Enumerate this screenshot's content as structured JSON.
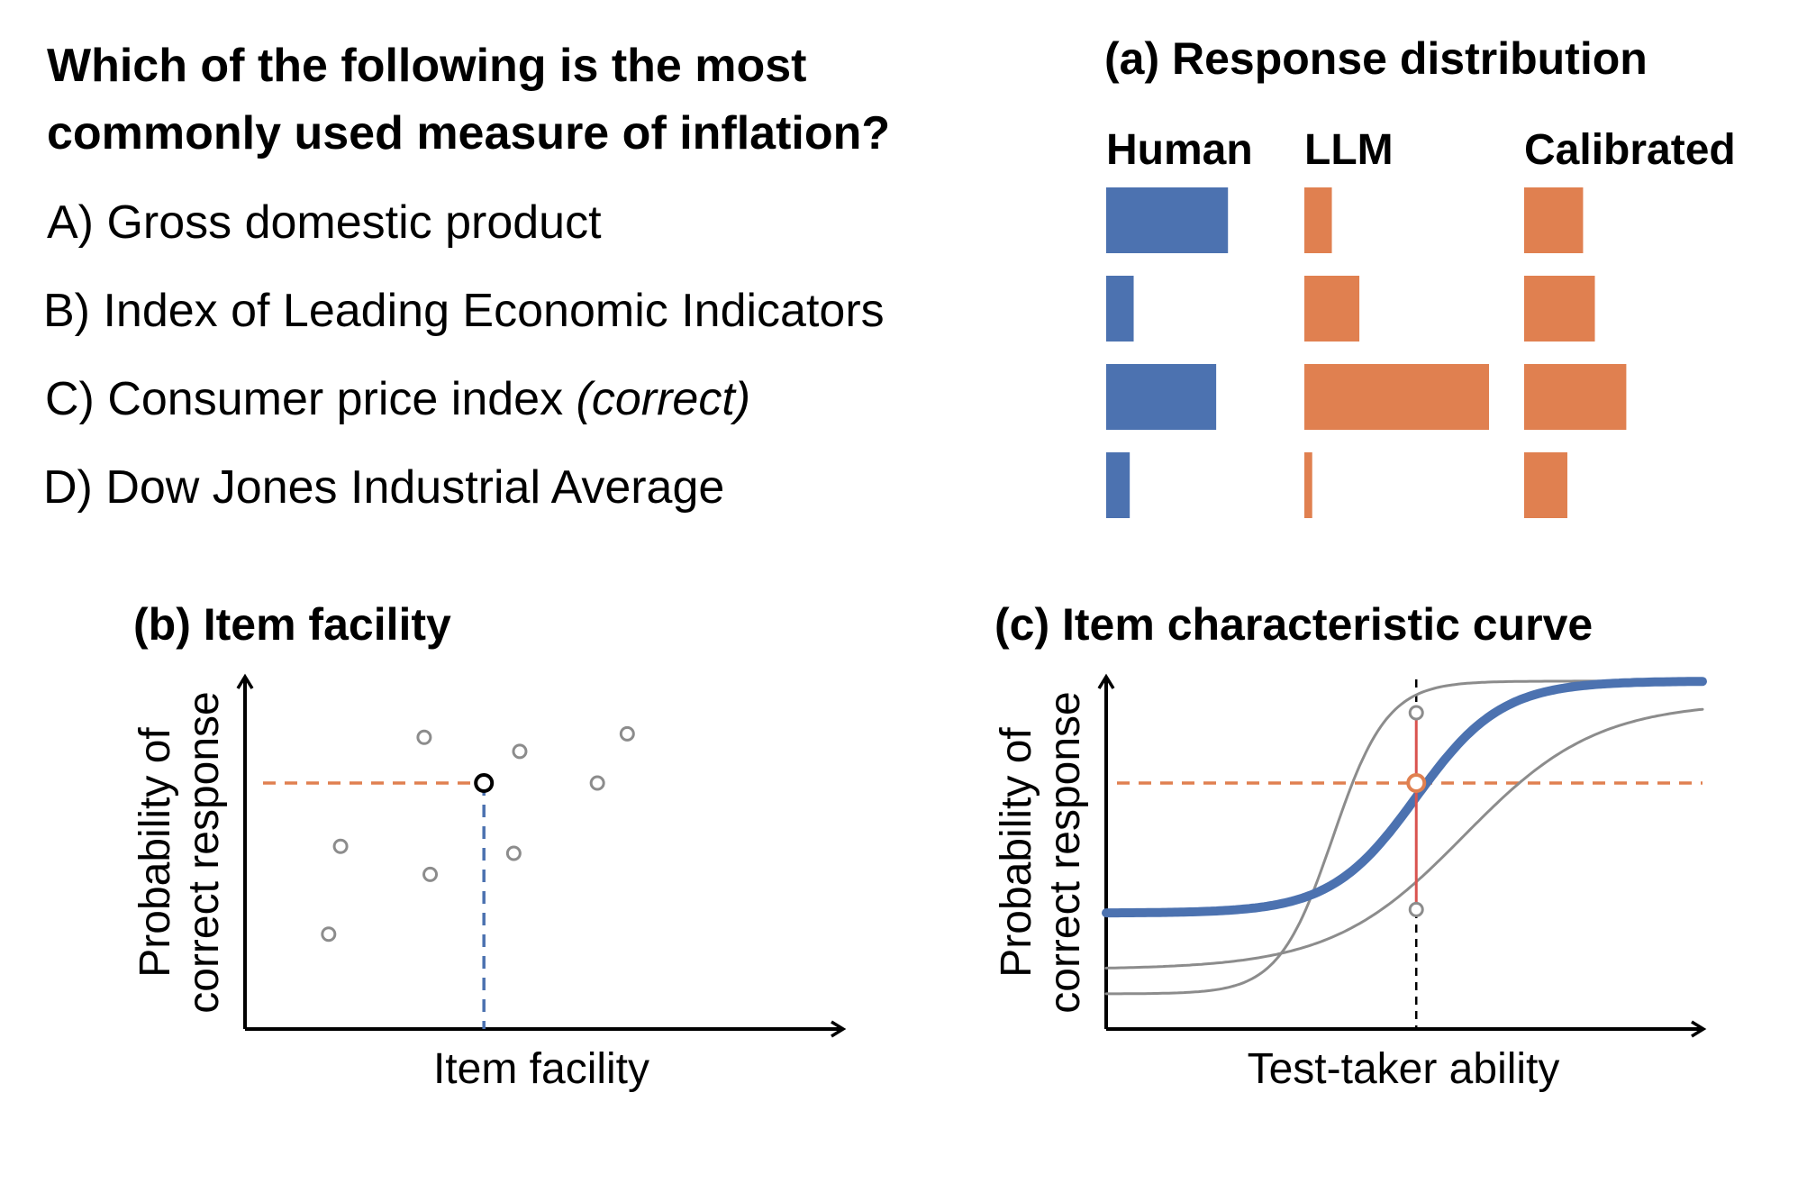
{
  "question": {
    "line1": "Which of the following is the most",
    "line2": "commonly used measure of inflation?",
    "options": [
      {
        "label": "A) Gross domestic product",
        "note": ""
      },
      {
        "label": "B) Index of Leading Economic Indicators",
        "note": ""
      },
      {
        "label": "C) Consumer price index ",
        "note": "(correct)"
      },
      {
        "label": "D) Dow Jones Industrial Average",
        "note": ""
      }
    ]
  },
  "colors": {
    "human": "#4c72b0",
    "llm": "#e08050",
    "grey": "#8c8c8c",
    "red": "#d9534f"
  },
  "chart_data": [
    {
      "id": "a",
      "type": "bar",
      "title": "(a) Response distribution",
      "categories": [
        "A",
        "B",
        "C",
        "D"
      ],
      "series": [
        {
          "name": "Human",
          "values": [
            0.31,
            0.07,
            0.28,
            0.06
          ]
        },
        {
          "name": "LLM",
          "values": [
            0.07,
            0.14,
            0.47,
            0.02
          ]
        },
        {
          "name": "Calibrated",
          "values": [
            0.15,
            0.18,
            0.26,
            0.11
          ]
        }
      ]
    },
    {
      "id": "b",
      "type": "scatter",
      "title": "(b) Item facility",
      "xlabel": "Item facility",
      "ylabel_line1": "Probability of",
      "ylabel_line2": "correct response",
      "xlim": [
        0,
        1
      ],
      "ylim": [
        0,
        1
      ],
      "points": [
        {
          "x": 0.3,
          "y": 0.83
        },
        {
          "x": 0.46,
          "y": 0.79
        },
        {
          "x": 0.64,
          "y": 0.84
        },
        {
          "x": 0.59,
          "y": 0.7
        },
        {
          "x": 0.16,
          "y": 0.52
        },
        {
          "x": 0.31,
          "y": 0.44
        },
        {
          "x": 0.45,
          "y": 0.5
        },
        {
          "x": 0.14,
          "y": 0.27
        }
      ],
      "highlight": {
        "x": 0.4,
        "y": 0.7
      }
    },
    {
      "id": "c",
      "type": "line",
      "title": "(c) Item characteristic curve",
      "xlabel": "Test-taker ability",
      "ylabel_line1": "Probability of",
      "ylabel_line2": "correct response",
      "xlim": [
        0,
        1
      ],
      "ylim": [
        0,
        1
      ],
      "ability_marker": 0.52,
      "target_level": 0.7,
      "curves": [
        {
          "name": "thin-steep",
          "guess": 0.1,
          "upper": 0.99,
          "difficulty": 0.38,
          "slope": 22
        },
        {
          "name": "thin-shallow",
          "guess": 0.17,
          "upper": 0.93,
          "difficulty": 0.6,
          "slope": 9
        },
        {
          "name": "main",
          "guess": 0.33,
          "upper": 0.99,
          "difficulty": 0.52,
          "slope": 14
        }
      ],
      "marker_points": [
        0.9,
        0.7,
        0.34
      ]
    }
  ]
}
